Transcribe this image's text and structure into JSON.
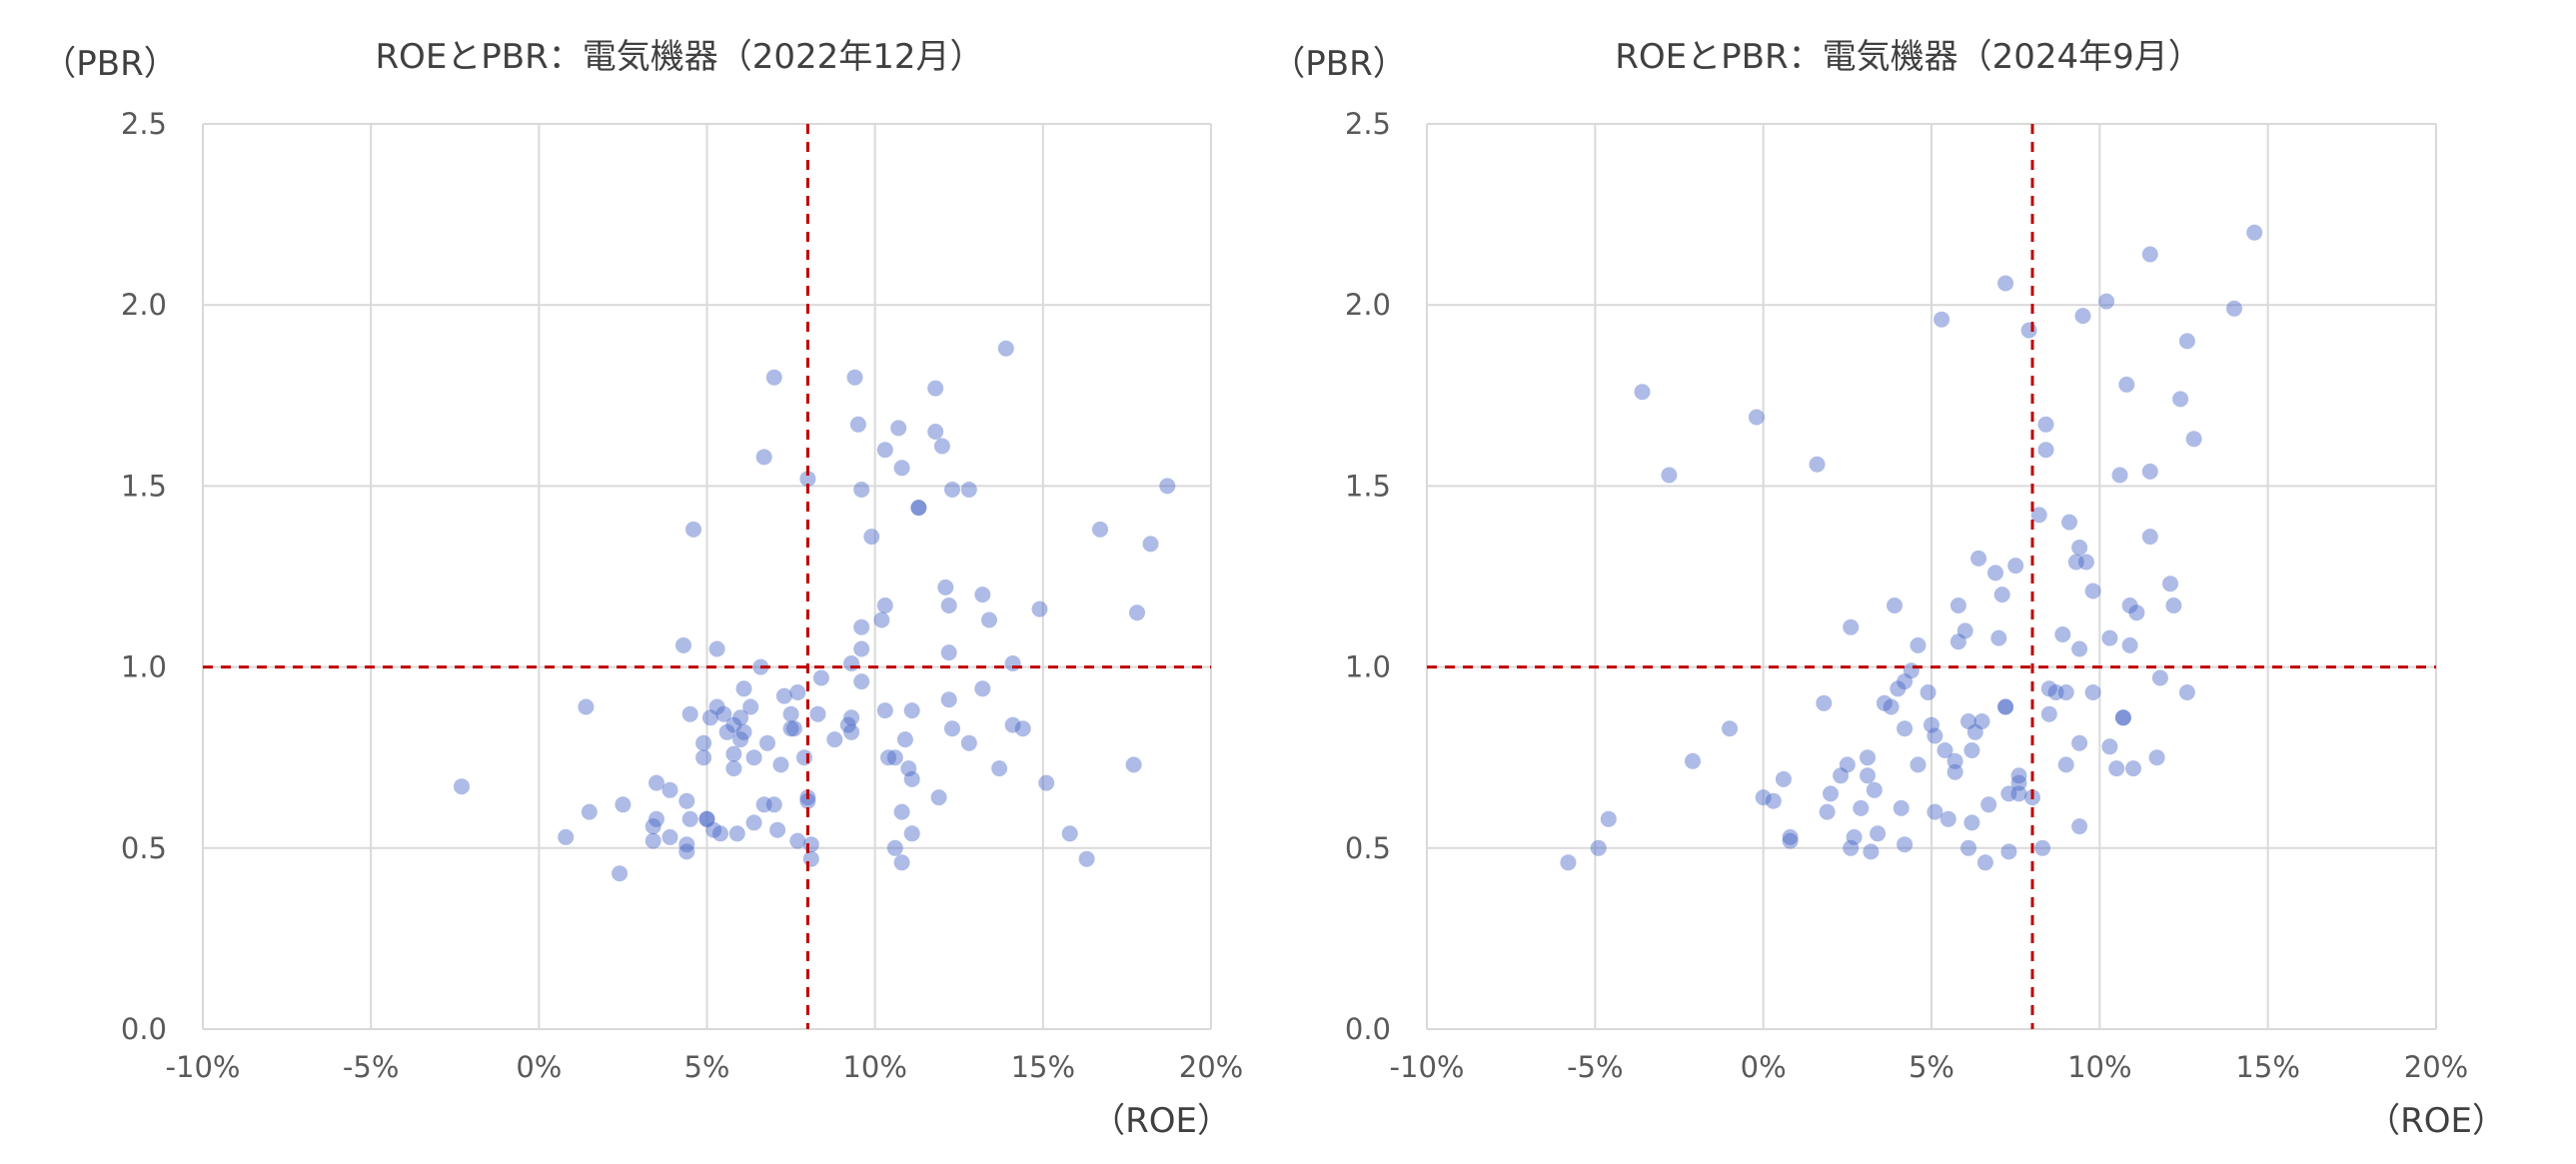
{
  "chart_data": [
    {
      "type": "scatter",
      "title": "ROEとPBR：電気機器（2022年12月）",
      "xlabel": "（ROE）",
      "ylabel": "（PBR）",
      "xlim": [
        -10,
        20
      ],
      "ylim": [
        0,
        2.5
      ],
      "x_ticks": [
        -10,
        -5,
        0,
        5,
        10,
        15,
        20
      ],
      "x_tick_labels": [
        "-10%",
        "-5%",
        "0%",
        "5%",
        "10%",
        "15%",
        "20%"
      ],
      "y_ticks": [
        0,
        0.5,
        1,
        1.5,
        2,
        2.5
      ],
      "y_tick_labels": [
        "0.0",
        "0.5",
        "1.0",
        "1.5",
        "2.0",
        "2.5"
      ],
      "reference_lines": {
        "x": 8,
        "y": 1.0
      },
      "grid": "vertical",
      "points": [
        [
          -2.3,
          0.67
        ],
        [
          0.8,
          0.53
        ],
        [
          1.4,
          0.89
        ],
        [
          1.5,
          0.6
        ],
        [
          2.4,
          0.43
        ],
        [
          2.5,
          0.62
        ],
        [
          3.4,
          0.52
        ],
        [
          3.4,
          0.56
        ],
        [
          3.5,
          0.58
        ],
        [
          3.5,
          0.68
        ],
        [
          3.9,
          0.66
        ],
        [
          3.9,
          0.53
        ],
        [
          4.3,
          1.06
        ],
        [
          4.4,
          0.63
        ],
        [
          4.4,
          0.51
        ],
        [
          4.4,
          0.49
        ],
        [
          4.5,
          0.87
        ],
        [
          4.5,
          0.58
        ],
        [
          4.6,
          1.38
        ],
        [
          4.9,
          0.75
        ],
        [
          4.9,
          0.79
        ],
        [
          5.0,
          0.58
        ],
        [
          5.0,
          0.58
        ],
        [
          5.1,
          0.86
        ],
        [
          5.2,
          0.55
        ],
        [
          5.3,
          1.05
        ],
        [
          5.3,
          0.89
        ],
        [
          5.4,
          0.54
        ],
        [
          5.5,
          0.87
        ],
        [
          5.6,
          0.82
        ],
        [
          5.8,
          0.84
        ],
        [
          5.8,
          0.76
        ],
        [
          5.8,
          0.72
        ],
        [
          5.9,
          0.54
        ],
        [
          6.0,
          0.8
        ],
        [
          6.0,
          0.86
        ],
        [
          6.1,
          0.82
        ],
        [
          6.1,
          0.94
        ],
        [
          6.3,
          0.89
        ],
        [
          6.4,
          0.57
        ],
        [
          6.4,
          0.75
        ],
        [
          6.6,
          1.0
        ],
        [
          6.7,
          1.58
        ],
        [
          6.7,
          0.62
        ],
        [
          6.8,
          0.79
        ],
        [
          7.0,
          1.8
        ],
        [
          7.0,
          0.62
        ],
        [
          7.1,
          0.55
        ],
        [
          7.2,
          0.73
        ],
        [
          7.3,
          0.92
        ],
        [
          7.5,
          0.87
        ],
        [
          7.5,
          0.83
        ],
        [
          7.6,
          0.83
        ],
        [
          7.7,
          0.93
        ],
        [
          7.7,
          0.52
        ],
        [
          7.9,
          0.75
        ],
        [
          8.0,
          1.52
        ],
        [
          8.0,
          0.63
        ],
        [
          8.0,
          0.64
        ],
        [
          8.1,
          0.47
        ],
        [
          8.1,
          0.51
        ],
        [
          8.3,
          0.87
        ],
        [
          8.4,
          0.97
        ],
        [
          8.8,
          0.8
        ],
        [
          9.2,
          0.84
        ],
        [
          9.3,
          0.86
        ],
        [
          9.3,
          0.82
        ],
        [
          9.3,
          1.01
        ],
        [
          9.4,
          1.8
        ],
        [
          9.5,
          1.67
        ],
        [
          9.6,
          1.49
        ],
        [
          9.6,
          1.11
        ],
        [
          9.6,
          1.05
        ],
        [
          9.6,
          0.96
        ],
        [
          9.9,
          1.36
        ],
        [
          10.2,
          1.13
        ],
        [
          10.3,
          1.17
        ],
        [
          10.3,
          0.88
        ],
        [
          10.3,
          1.6
        ],
        [
          10.4,
          0.75
        ],
        [
          10.6,
          0.5
        ],
        [
          10.6,
          0.75
        ],
        [
          10.7,
          1.66
        ],
        [
          10.8,
          1.55
        ],
        [
          10.8,
          0.6
        ],
        [
          10.8,
          0.46
        ],
        [
          10.9,
          0.8
        ],
        [
          11.0,
          0.72
        ],
        [
          11.1,
          0.88
        ],
        [
          11.1,
          0.69
        ],
        [
          11.1,
          0.54
        ],
        [
          11.3,
          1.44
        ],
        [
          11.3,
          1.44
        ],
        [
          11.8,
          1.77
        ],
        [
          11.8,
          1.65
        ],
        [
          11.9,
          0.64
        ],
        [
          12.0,
          1.61
        ],
        [
          12.1,
          1.22
        ],
        [
          12.2,
          1.17
        ],
        [
          12.2,
          1.04
        ],
        [
          12.2,
          0.91
        ],
        [
          12.3,
          1.49
        ],
        [
          12.3,
          0.83
        ],
        [
          12.8,
          1.49
        ],
        [
          12.8,
          0.79
        ],
        [
          13.2,
          1.2
        ],
        [
          13.2,
          0.94
        ],
        [
          13.4,
          1.13
        ],
        [
          13.7,
          0.72
        ],
        [
          13.9,
          1.88
        ],
        [
          14.1,
          1.01
        ],
        [
          14.1,
          0.84
        ],
        [
          14.4,
          0.83
        ],
        [
          14.9,
          1.16
        ],
        [
          15.1,
          0.68
        ],
        [
          15.8,
          0.54
        ],
        [
          16.3,
          0.47
        ],
        [
          16.7,
          1.38
        ],
        [
          17.7,
          0.73
        ],
        [
          17.8,
          1.15
        ],
        [
          18.2,
          1.34
        ],
        [
          18.7,
          1.5
        ]
      ]
    },
    {
      "type": "scatter",
      "title": "ROEとPBR：電気機器（2024年9月）",
      "xlabel": "（ROE）",
      "ylabel": "（PBR）",
      "xlim": [
        -10,
        20
      ],
      "ylim": [
        0,
        2.5
      ],
      "x_ticks": [
        -10,
        -5,
        0,
        5,
        10,
        15,
        20
      ],
      "x_tick_labels": [
        "-10%",
        "-5%",
        "0%",
        "5%",
        "10%",
        "15%",
        "20%"
      ],
      "y_ticks": [
        0,
        0.5,
        1,
        1.5,
        2,
        2.5
      ],
      "y_tick_labels": [
        "0.0",
        "0.5",
        "1.0",
        "1.5",
        "2.0",
        "2.5"
      ],
      "reference_lines": {
        "x": 8,
        "y": 1.0
      },
      "grid": "vertical",
      "points": [
        [
          -5.8,
          0.46
        ],
        [
          -4.9,
          0.5
        ],
        [
          -4.6,
          0.58
        ],
        [
          -3.6,
          1.76
        ],
        [
          -2.8,
          1.53
        ],
        [
          -2.1,
          0.74
        ],
        [
          -1.0,
          0.83
        ],
        [
          -0.2,
          1.69
        ],
        [
          0.0,
          0.64
        ],
        [
          0.3,
          0.63
        ],
        [
          0.6,
          0.69
        ],
        [
          0.8,
          0.53
        ],
        [
          0.8,
          0.52
        ],
        [
          1.6,
          1.56
        ],
        [
          1.8,
          0.9
        ],
        [
          1.9,
          0.6
        ],
        [
          2.0,
          0.65
        ],
        [
          2.3,
          0.7
        ],
        [
          2.5,
          0.73
        ],
        [
          2.6,
          1.11
        ],
        [
          2.6,
          0.5
        ],
        [
          2.7,
          0.53
        ],
        [
          2.9,
          0.61
        ],
        [
          3.1,
          0.75
        ],
        [
          3.1,
          0.7
        ],
        [
          3.2,
          0.49
        ],
        [
          3.3,
          0.66
        ],
        [
          3.4,
          0.54
        ],
        [
          3.6,
          0.9
        ],
        [
          3.8,
          0.89
        ],
        [
          3.9,
          1.17
        ],
        [
          4.0,
          0.94
        ],
        [
          4.1,
          0.61
        ],
        [
          4.2,
          0.96
        ],
        [
          4.2,
          0.83
        ],
        [
          4.2,
          0.51
        ],
        [
          4.4,
          0.99
        ],
        [
          4.6,
          1.06
        ],
        [
          4.6,
          0.73
        ],
        [
          4.9,
          0.93
        ],
        [
          5.0,
          0.84
        ],
        [
          5.1,
          0.81
        ],
        [
          5.1,
          0.6
        ],
        [
          5.3,
          1.96
        ],
        [
          5.4,
          0.77
        ],
        [
          5.5,
          0.58
        ],
        [
          5.7,
          0.74
        ],
        [
          5.7,
          0.71
        ],
        [
          5.8,
          1.17
        ],
        [
          5.8,
          1.07
        ],
        [
          6.0,
          1.1
        ],
        [
          6.1,
          0.85
        ],
        [
          6.1,
          0.5
        ],
        [
          6.2,
          0.57
        ],
        [
          6.2,
          0.77
        ],
        [
          6.3,
          0.82
        ],
        [
          6.4,
          1.3
        ],
        [
          6.5,
          0.85
        ],
        [
          6.6,
          0.46
        ],
        [
          6.7,
          0.62
        ],
        [
          6.9,
          1.26
        ],
        [
          7.0,
          1.08
        ],
        [
          7.1,
          1.2
        ],
        [
          7.2,
          2.06
        ],
        [
          7.2,
          0.89
        ],
        [
          7.2,
          0.89
        ],
        [
          7.3,
          0.65
        ],
        [
          7.3,
          0.49
        ],
        [
          7.5,
          1.28
        ],
        [
          7.6,
          0.65
        ],
        [
          7.6,
          0.68
        ],
        [
          7.6,
          0.7
        ],
        [
          7.9,
          1.93
        ],
        [
          8.0,
          0.64
        ],
        [
          8.2,
          1.42
        ],
        [
          8.3,
          0.5
        ],
        [
          8.4,
          1.67
        ],
        [
          8.4,
          1.6
        ],
        [
          8.5,
          0.94
        ],
        [
          8.5,
          0.87
        ],
        [
          8.7,
          0.93
        ],
        [
          8.9,
          1.09
        ],
        [
          9.0,
          0.93
        ],
        [
          9.0,
          0.73
        ],
        [
          9.1,
          1.4
        ],
        [
          9.3,
          1.29
        ],
        [
          9.4,
          1.33
        ],
        [
          9.4,
          1.05
        ],
        [
          9.4,
          0.79
        ],
        [
          9.4,
          0.56
        ],
        [
          9.5,
          1.97
        ],
        [
          9.6,
          1.29
        ],
        [
          9.8,
          1.21
        ],
        [
          9.8,
          0.93
        ],
        [
          10.2,
          2.01
        ],
        [
          10.3,
          1.08
        ],
        [
          10.3,
          0.78
        ],
        [
          10.5,
          0.72
        ],
        [
          10.6,
          1.53
        ],
        [
          10.7,
          0.86
        ],
        [
          10.7,
          0.86
        ],
        [
          10.8,
          1.78
        ],
        [
          10.9,
          1.06
        ],
        [
          10.9,
          1.17
        ],
        [
          11.0,
          0.72
        ],
        [
          11.1,
          1.15
        ],
        [
          11.5,
          2.14
        ],
        [
          11.5,
          1.54
        ],
        [
          11.5,
          1.36
        ],
        [
          11.7,
          0.75
        ],
        [
          11.8,
          0.97
        ],
        [
          12.1,
          1.23
        ],
        [
          12.2,
          1.17
        ],
        [
          12.4,
          1.74
        ],
        [
          12.6,
          1.9
        ],
        [
          12.6,
          0.93
        ],
        [
          12.8,
          1.63
        ],
        [
          14.0,
          1.99
        ],
        [
          14.6,
          2.2
        ]
      ]
    }
  ]
}
